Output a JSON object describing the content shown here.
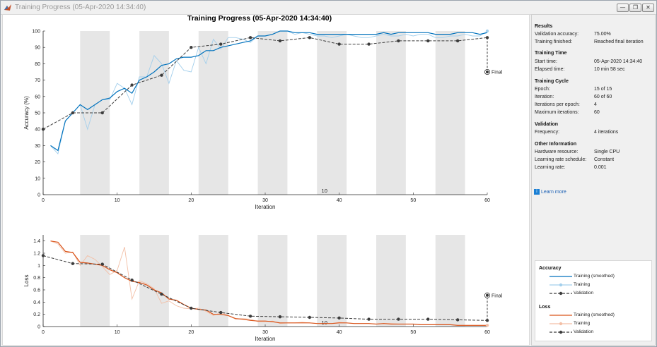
{
  "window": {
    "title": "Training Progress (05-Apr-2020 14:34:40)",
    "buttons": [
      "—",
      "❐",
      "✕"
    ]
  },
  "figure_title": "Training Progress (05-Apr-2020 14:34:40)",
  "colors": {
    "accuracy_smoothed": "#0072bd",
    "accuracy_raw": "#a3cfec",
    "loss_smoothed": "#d95319",
    "loss_raw": "#f3bfa6",
    "validation": "#3c3c3c",
    "epoch_band": "#e6e6e6",
    "link": "#1a5fb4"
  },
  "chart_data": [
    {
      "type": "line",
      "name_hint": "accuracy",
      "title": "Training Progress (05-Apr-2020 14:34:40)",
      "xlabel": "Iteration",
      "ylabel": "Accuracy (%)",
      "xlim": [
        0,
        60
      ],
      "ylim": [
        0,
        100
      ],
      "xticks": [
        0,
        10,
        20,
        30,
        40,
        50,
        60
      ],
      "yticks": [
        0,
        10,
        20,
        30,
        40,
        50,
        60,
        70,
        80,
        90,
        100
      ],
      "epoch_bands": [
        [
          5,
          9
        ],
        [
          13,
          17
        ],
        [
          21,
          25
        ],
        [
          29,
          33
        ],
        [
          37,
          41
        ],
        [
          45,
          49
        ],
        [
          53,
          57
        ]
      ],
      "annotation": "10",
      "final_label": "Final",
      "final_point": [
        60,
        75
      ],
      "series": [
        {
          "name": "Training (smoothed)",
          "x": [
            1,
            2,
            3,
            4,
            5,
            6,
            7,
            8,
            9,
            10,
            11,
            12,
            13,
            14,
            15,
            16,
            17,
            18,
            19,
            20,
            21,
            22,
            23,
            24,
            25,
            26,
            27,
            28,
            29,
            30,
            31,
            32,
            33,
            34,
            35,
            36,
            37,
            38,
            39,
            40,
            41,
            42,
            43,
            44,
            45,
            46,
            47,
            48,
            49,
            50,
            51,
            52,
            53,
            54,
            55,
            56,
            57,
            58,
            59,
            60
          ],
          "y": [
            30,
            27,
            45,
            50,
            55,
            52,
            55,
            58,
            59,
            63,
            65,
            62,
            70,
            72,
            75,
            79,
            80,
            83,
            84,
            84,
            85,
            88,
            88,
            90,
            91,
            92,
            93,
            94,
            97,
            97,
            98,
            100,
            100,
            99,
            99,
            99,
            98,
            98,
            98,
            98,
            98,
            98,
            98,
            98,
            98,
            99,
            98,
            99,
            99,
            99,
            99,
            99,
            98,
            98,
            98,
            99,
            99,
            99,
            98,
            99
          ]
        },
        {
          "name": "Training",
          "x": [
            1,
            2,
            3,
            4,
            5,
            6,
            7,
            8,
            9,
            10,
            11,
            12,
            13,
            14,
            15,
            16,
            17,
            18,
            19,
            20,
            21,
            22,
            23,
            24,
            25,
            26,
            27,
            28,
            29,
            30,
            31,
            32,
            33,
            34,
            35,
            36,
            37,
            38,
            39,
            40,
            41,
            42,
            43,
            44,
            45,
            46,
            47,
            48,
            49,
            50,
            51,
            52,
            53,
            54,
            55,
            56,
            57,
            58,
            59,
            60
          ],
          "y": [
            30,
            25,
            45,
            50,
            55,
            40,
            55,
            58,
            58,
            68,
            65,
            55,
            72,
            72,
            85,
            80,
            68,
            82,
            76,
            75,
            90,
            80,
            95,
            89,
            96,
            96,
            95,
            93,
            97,
            97,
            98,
            100,
            100,
            98,
            99,
            98,
            97,
            97,
            96,
            97,
            98,
            97,
            96,
            96,
            97,
            98,
            97,
            97,
            98,
            97,
            98,
            98,
            96,
            96,
            97,
            97,
            98,
            97,
            97,
            100
          ]
        },
        {
          "name": "Validation",
          "x": [
            0,
            4,
            8,
            12,
            16,
            20,
            24,
            28,
            32,
            36,
            40,
            44,
            48,
            52,
            56,
            60
          ],
          "y": [
            40,
            50,
            50,
            67,
            73,
            90,
            92,
            96,
            94,
            96,
            92,
            92,
            94,
            94,
            94,
            96
          ]
        }
      ]
    },
    {
      "type": "line",
      "name_hint": "loss",
      "title": "",
      "xlabel": "Iteration",
      "ylabel": "Loss",
      "xlim": [
        0,
        60
      ],
      "ylim": [
        0,
        1.5
      ],
      "xticks": [
        0,
        10,
        20,
        30,
        40,
        50,
        60
      ],
      "yticks": [
        0,
        0.2,
        0.4,
        0.6,
        0.8,
        1,
        1.2,
        1.4
      ],
      "epoch_bands": [
        [
          5,
          9
        ],
        [
          13,
          17
        ],
        [
          21,
          25
        ],
        [
          29,
          33
        ],
        [
          37,
          41
        ],
        [
          45,
          49
        ],
        [
          53,
          57
        ]
      ],
      "annotation": "10",
      "final_label": "Final",
      "final_point": [
        60,
        0.51
      ],
      "series": [
        {
          "name": "Training (smoothed)",
          "x": [
            1,
            2,
            3,
            4,
            5,
            6,
            7,
            8,
            9,
            10,
            11,
            12,
            13,
            14,
            15,
            16,
            17,
            18,
            19,
            20,
            21,
            22,
            23,
            24,
            25,
            26,
            27,
            28,
            29,
            30,
            31,
            32,
            33,
            34,
            35,
            36,
            37,
            38,
            39,
            40,
            41,
            42,
            43,
            44,
            45,
            46,
            47,
            48,
            49,
            50,
            51,
            52,
            53,
            54,
            55,
            56,
            57,
            58,
            59,
            60
          ],
          "y": [
            1.4,
            1.38,
            1.23,
            1.21,
            1.05,
            1.04,
            1.02,
            1.0,
            0.93,
            0.88,
            0.8,
            0.74,
            0.72,
            0.68,
            0.6,
            0.55,
            0.45,
            0.43,
            0.36,
            0.3,
            0.28,
            0.27,
            0.2,
            0.2,
            0.18,
            0.13,
            0.12,
            0.1,
            0.09,
            0.09,
            0.08,
            0.06,
            0.06,
            0.06,
            0.06,
            0.06,
            0.05,
            0.05,
            0.05,
            0.06,
            0.06,
            0.05,
            0.05,
            0.05,
            0.04,
            0.05,
            0.04,
            0.04,
            0.04,
            0.04,
            0.03,
            0.03,
            0.03,
            0.03,
            0.03,
            0.02,
            0.02,
            0.02,
            0.02,
            0.02
          ]
        },
        {
          "name": "Training",
          "x": [
            1,
            2,
            3,
            4,
            5,
            6,
            7,
            8,
            9,
            10,
            11,
            12,
            13,
            14,
            15,
            16,
            17,
            18,
            19,
            20,
            21,
            22,
            23,
            24,
            25,
            26,
            27,
            28,
            29,
            30,
            31,
            32,
            33,
            34,
            35,
            36,
            37,
            38,
            39,
            40,
            41,
            42,
            43,
            44,
            45,
            46,
            47,
            48,
            49,
            50,
            51,
            52,
            53,
            54,
            55,
            56,
            57,
            58,
            59,
            60
          ],
          "y": [
            1.4,
            1.35,
            1.2,
            1.22,
            1.0,
            1.16,
            1.1,
            0.98,
            0.85,
            0.92,
            1.3,
            0.45,
            0.75,
            0.7,
            0.62,
            0.38,
            0.42,
            0.34,
            0.3,
            0.29,
            0.3,
            0.25,
            0.18,
            0.23,
            0.18,
            0.12,
            0.13,
            0.12,
            0.08,
            0.08,
            0.09,
            0.05,
            0.06,
            0.06,
            0.07,
            0.06,
            0.05,
            0.05,
            0.05,
            0.07,
            0.06,
            0.05,
            0.05,
            0.05,
            0.04,
            0.05,
            0.05,
            0.04,
            0.04,
            0.04,
            0.03,
            0.03,
            0.03,
            0.03,
            0.03,
            0.02,
            0.02,
            0.02,
            0.02,
            0.02
          ]
        },
        {
          "name": "Validation",
          "x": [
            0,
            4,
            8,
            12,
            16,
            20,
            24,
            28,
            32,
            36,
            40,
            44,
            48,
            52,
            56,
            60
          ],
          "y": [
            1.16,
            1.03,
            1.02,
            0.76,
            0.53,
            0.3,
            0.23,
            0.17,
            0.16,
            0.15,
            0.14,
            0.12,
            0.12,
            0.12,
            0.11,
            0.1
          ]
        }
      ]
    }
  ],
  "results": {
    "heading": "Results",
    "rows": [
      {
        "label": "Validation accuracy:",
        "value": "75.00%"
      },
      {
        "label": "Training finished:",
        "value": "Reached final iteration"
      }
    ]
  },
  "training_time": {
    "heading": "Training Time",
    "rows": [
      {
        "label": "Start time:",
        "value": "05-Apr-2020 14:34:40"
      },
      {
        "label": "Elapsed time:",
        "value": "10 min 58 sec"
      }
    ]
  },
  "training_cycle": {
    "heading": "Training Cycle",
    "rows": [
      {
        "label": "Epoch:",
        "value": "15 of 15"
      },
      {
        "label": "Iteration:",
        "value": "60 of 60"
      },
      {
        "label": "Iterations per epoch:",
        "value": "4"
      },
      {
        "label": "Maximum iterations:",
        "value": "60"
      }
    ]
  },
  "validation": {
    "heading": "Validation",
    "rows": [
      {
        "label": "Frequency:",
        "value": "4 iterations"
      }
    ]
  },
  "other_info": {
    "heading": "Other Information",
    "rows": [
      {
        "label": "Hardware resource:",
        "value": "Single CPU"
      },
      {
        "label": "Learning rate schedule:",
        "value": "Constant"
      },
      {
        "label": "Learning rate:",
        "value": "0.001"
      }
    ]
  },
  "learn_more": "Learn more",
  "legend": {
    "accuracy_heading": "Accuracy",
    "loss_heading": "Loss",
    "items": [
      "Training (smoothed)",
      "Training",
      "Validation"
    ]
  }
}
